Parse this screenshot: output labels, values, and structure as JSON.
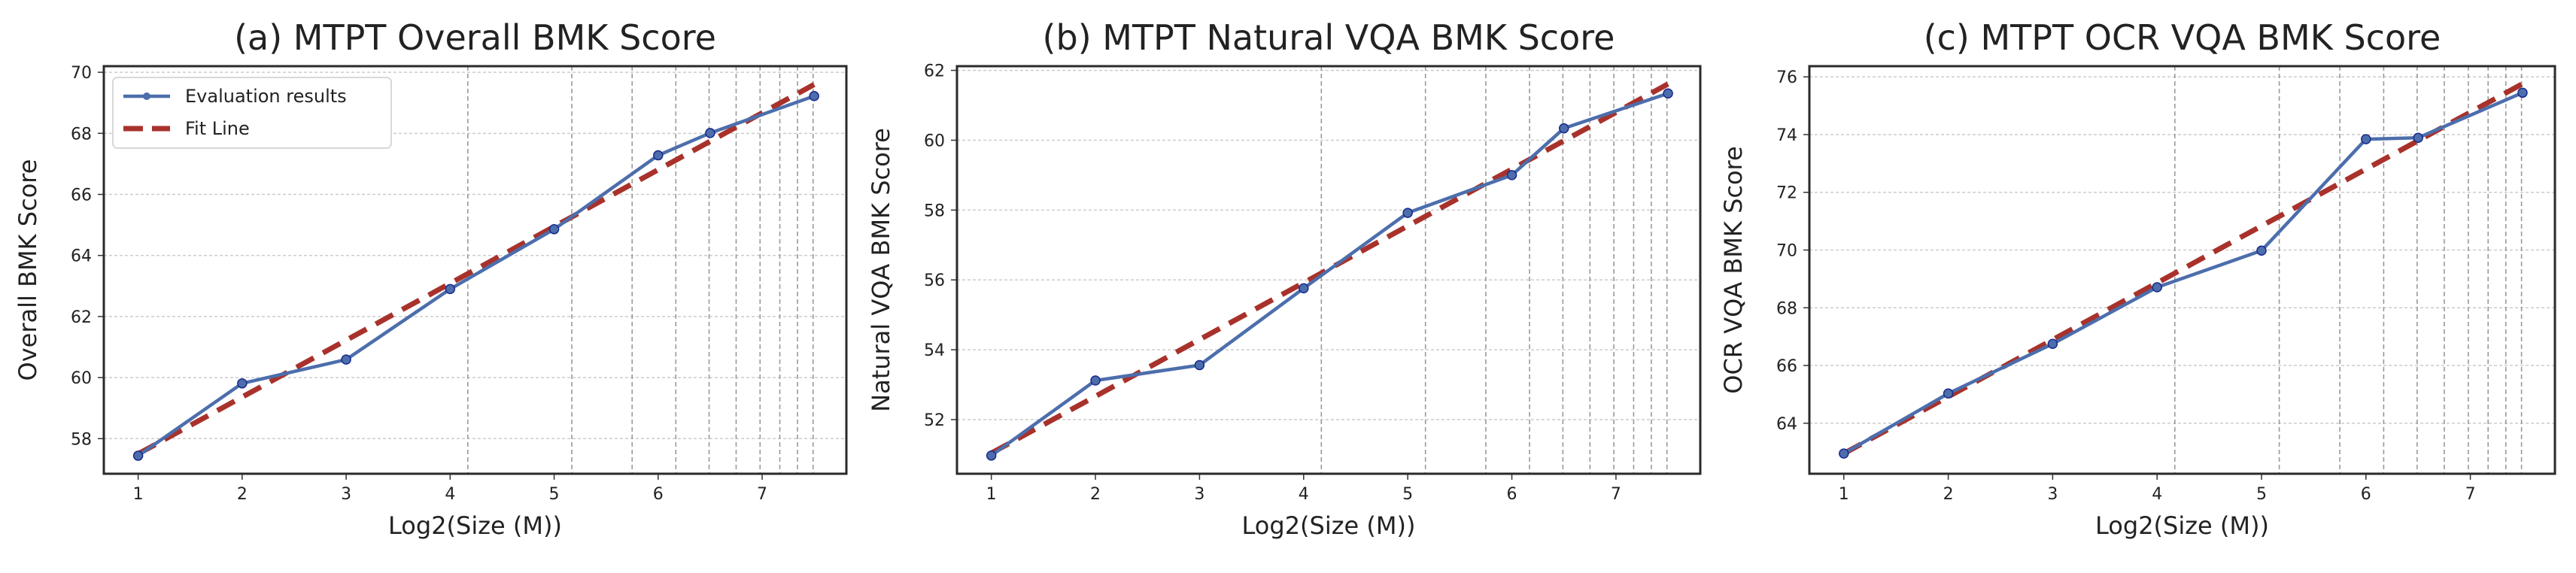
{
  "legend": {
    "eval_label": "Evaluation results",
    "fit_label": "Fit Line",
    "placement": "upper-left (panel a)"
  },
  "colors": {
    "series": "#4c6eac",
    "marker_edge": "#1a2a8c",
    "fit": "#a8322b",
    "grid": "#cccccc",
    "vgrid": "#999999"
  },
  "chart_data": [
    {
      "type": "line",
      "title": "(a) MTPT Overall BMK Score",
      "xlabel": "Log2(Size (M))",
      "ylabel": "Overall BMK Score",
      "xlim": [
        0.67,
        7.81
      ],
      "ylim": [
        56.85,
        70.2
      ],
      "xticks": [
        1,
        2,
        3,
        4,
        5,
        6,
        7
      ],
      "yticks": [
        58,
        60,
        62,
        64,
        66,
        68,
        70
      ],
      "vertical_lines_x": [
        4.17,
        5.17,
        5.75,
        6.17,
        6.49,
        6.75,
        6.98,
        7.17,
        7.34,
        7.49
      ],
      "grid": true,
      "legend": true,
      "series": [
        {
          "name": "Evaluation results",
          "x": [
            1,
            2,
            3,
            4,
            5,
            6,
            6.5,
            7.5
          ],
          "y": [
            57.44,
            59.81,
            60.59,
            62.9,
            64.86,
            67.28,
            68.01,
            69.22
          ]
        },
        {
          "name": "Fit Line",
          "x": [
            1,
            7.5
          ],
          "y": [
            57.5,
            69.6
          ],
          "style": "dashed"
        }
      ]
    },
    {
      "type": "line",
      "title": "(b) MTPT Natural VQA BMK Score",
      "xlabel": "Log2(Size (M))",
      "ylabel": "Natural VQA BMK Score",
      "xlim": [
        0.67,
        7.81
      ],
      "ylim": [
        50.45,
        62.12
      ],
      "xticks": [
        1,
        2,
        3,
        4,
        5,
        6,
        7
      ],
      "yticks": [
        52,
        54,
        56,
        58,
        60,
        62
      ],
      "vertical_lines_x": [
        4.17,
        5.17,
        5.75,
        6.17,
        6.49,
        6.75,
        6.98,
        7.17,
        7.34,
        7.49
      ],
      "grid": true,
      "legend": false,
      "series": [
        {
          "name": "Evaluation results",
          "x": [
            1,
            2,
            3,
            4,
            5,
            6,
            6.5,
            7.5
          ],
          "y": [
            50.97,
            53.12,
            53.56,
            55.76,
            57.92,
            59.0,
            60.34,
            61.34
          ]
        },
        {
          "name": "Fit Line",
          "x": [
            1,
            7.5
          ],
          "y": [
            51.04,
            61.61
          ],
          "style": "dashed"
        }
      ]
    },
    {
      "type": "line",
      "title": "(c) MTPT OCR VQA BMK Score",
      "xlabel": "Log2(Size (M))",
      "ylabel": "OCR VQA BMK Score",
      "xlim": [
        0.67,
        7.81
      ],
      "ylim": [
        62.25,
        76.37
      ],
      "xticks": [
        1,
        2,
        3,
        4,
        5,
        6,
        7
      ],
      "yticks": [
        64,
        66,
        68,
        70,
        72,
        74,
        76
      ],
      "vertical_lines_x": [
        4.17,
        5.17,
        5.75,
        6.17,
        6.49,
        6.75,
        6.98,
        7.17,
        7.34,
        7.49
      ],
      "grid": true,
      "legend": false,
      "series": [
        {
          "name": "Evaluation results",
          "x": [
            1,
            2,
            3,
            4,
            5,
            6,
            6.5,
            7.5
          ],
          "y": [
            62.95,
            65.03,
            66.75,
            68.71,
            69.98,
            73.84,
            73.89,
            75.45
          ]
        },
        {
          "name": "Fit Line",
          "x": [
            1,
            7.5
          ],
          "y": [
            62.95,
            75.76
          ],
          "style": "dashed"
        }
      ]
    }
  ]
}
